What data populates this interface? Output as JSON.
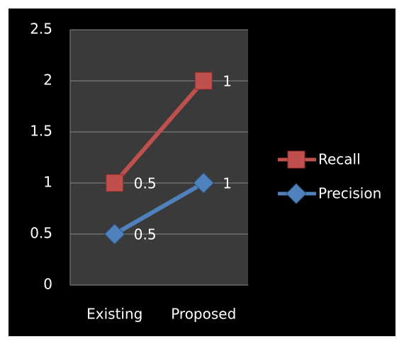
{
  "chart_data": {
    "type": "line",
    "stacked": true,
    "categories": [
      "Existing",
      "Proposed"
    ],
    "series": [
      {
        "name": "Precision",
        "color": "#4f81bd",
        "marker": "diamond",
        "values": [
          0.5,
          1
        ]
      },
      {
        "name": "Recall",
        "color": "#c0504d",
        "marker": "square",
        "values": [
          0.5,
          1
        ]
      }
    ],
    "ylim": [
      0,
      2.5
    ],
    "yticks": [
      0,
      0.5,
      1,
      1.5,
      2,
      2.5
    ],
    "grid": true,
    "legend": "right"
  }
}
